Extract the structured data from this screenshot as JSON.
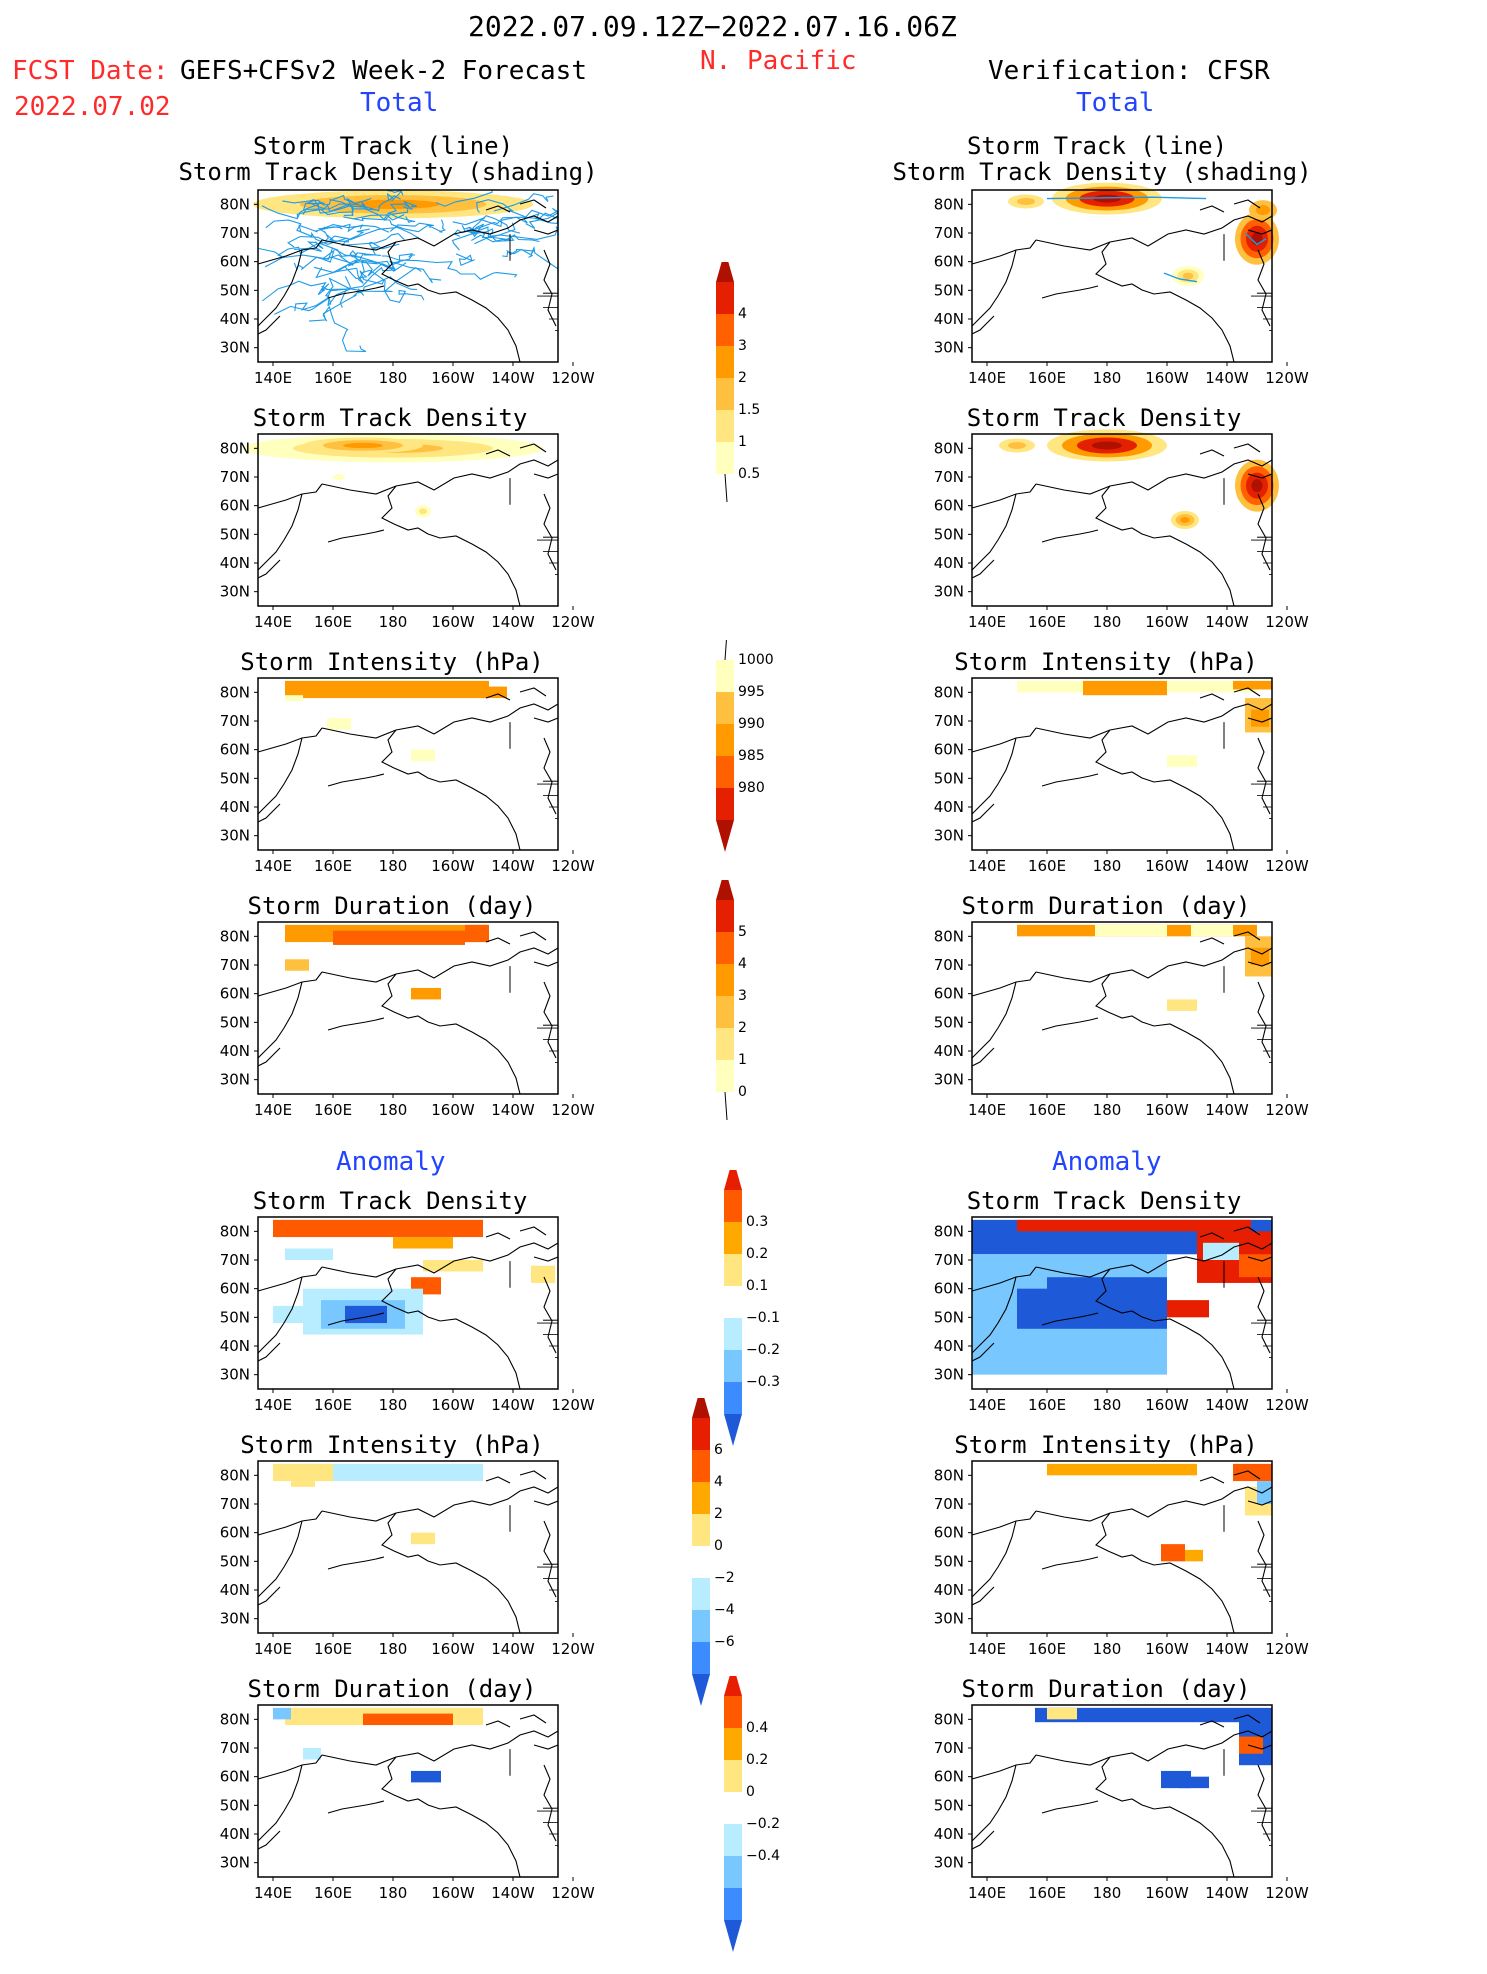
{
  "header": {
    "date_range": "2022.07.09.12Z−2022.07.16.06Z",
    "region": "N. Pacific",
    "fcst_label": "FCST Date:",
    "forecast_name": "GEFS+CFSv2 Week-2 Forecast",
    "fcst_date": "2022.07.02",
    "verification": "Verification: CFSR"
  },
  "sections": {
    "total_left": "Total",
    "total_right": "Total",
    "anomaly_left": "Anomaly",
    "anomaly_right": "Anomaly"
  },
  "panel_titles": {
    "track_line": "Storm Track (line)",
    "track_shading": "Storm Track Density (shading)",
    "density": "Storm Track Density",
    "intensity": "Storm Intensity (hPa)",
    "duration": "Storm Duration (day)"
  },
  "axes": {
    "lat_ticks": [
      "80N",
      "70N",
      "60N",
      "50N",
      "40N",
      "30N"
    ],
    "lon_ticks": [
      "140E",
      "160E",
      "180",
      "160W",
      "140W",
      "120W"
    ]
  },
  "colorbars": {
    "density_total": [
      "4",
      "3",
      "2",
      "1.5",
      "1",
      "0.5"
    ],
    "intensity_total": [
      "1000",
      "995",
      "990",
      "985",
      "980"
    ],
    "duration_total": [
      "5",
      "4",
      "3",
      "2",
      "1",
      "0"
    ],
    "density_anom": [
      "0.3",
      "0.2",
      "0.1",
      "−0.1",
      "−0.2",
      "−0.3"
    ],
    "intensity_anom": [
      "6",
      "4",
      "2",
      "0",
      "−2",
      "−4",
      "−6"
    ],
    "duration_anom": [
      "0.4",
      "0.2",
      "0",
      "−0.2",
      "−0.4"
    ]
  },
  "colors": {
    "red_text": "#ff2a2a",
    "blue_text": "#2244ff",
    "track_line": "#1e9be8",
    "scale_warm": [
      "#ffffbe",
      "#ffe680",
      "#ffc040",
      "#ff9a00",
      "#ff6000",
      "#e42000",
      "#b01000"
    ],
    "scale_anom_warm": [
      "#ffe680",
      "#ffa800",
      "#ff5a00",
      "#e81e00"
    ],
    "scale_anom_cool": [
      "#b8ecff",
      "#78c8ff",
      "#3c8cff",
      "#1e5ad8"
    ]
  }
}
